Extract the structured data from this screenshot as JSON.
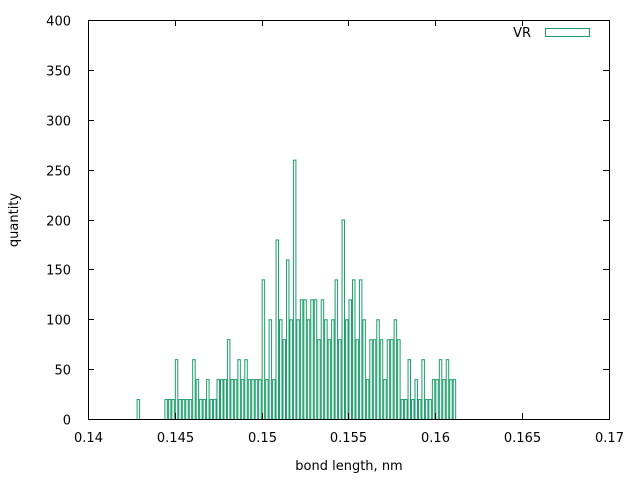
{
  "chart_data": {
    "type": "bar",
    "xlabel": "bond length, nm",
    "ylabel": "quantity",
    "xlim": [
      0.14,
      0.17
    ],
    "ylim": [
      0,
      400
    ],
    "x_ticks": [
      0.14,
      0.145,
      0.15,
      0.155,
      0.16,
      0.165,
      0.17
    ],
    "x_tick_labels": [
      "0.14",
      "0.145",
      "0.15",
      "0.155",
      "0.16",
      "0.165",
      "0.17"
    ],
    "y_ticks": [
      0,
      50,
      100,
      150,
      200,
      250,
      300,
      350,
      400
    ],
    "y_tick_labels": [
      "0",
      "50",
      "100",
      "150",
      "200",
      "250",
      "300",
      "350",
      "400"
    ],
    "grid": false,
    "legend": "top-right",
    "bin_width": 0.0002,
    "series": [
      {
        "name": "VR",
        "color": "#1a9f6a",
        "x": [
          0.1429,
          0.1445,
          0.1447,
          0.1449,
          0.1451,
          0.1453,
          0.1455,
          0.1457,
          0.1459,
          0.1461,
          0.1463,
          0.1465,
          0.1467,
          0.1469,
          0.1471,
          0.1473,
          0.1475,
          0.1477,
          0.1479,
          0.1481,
          0.1483,
          0.1485,
          0.1487,
          0.1489,
          0.1491,
          0.1493,
          0.1495,
          0.1497,
          0.1499,
          0.1501,
          0.1503,
          0.1505,
          0.1507,
          0.1509,
          0.1511,
          0.1513,
          0.1515,
          0.1517,
          0.1519,
          0.1521,
          0.1523,
          0.1525,
          0.1527,
          0.1529,
          0.1531,
          0.1533,
          0.1535,
          0.1537,
          0.1539,
          0.1541,
          0.1543,
          0.1545,
          0.1547,
          0.1549,
          0.1551,
          0.1553,
          0.1555,
          0.1557,
          0.1559,
          0.1561,
          0.1563,
          0.1565,
          0.1567,
          0.1569,
          0.1571,
          0.1573,
          0.1575,
          0.1577,
          0.1579,
          0.1581,
          0.1583,
          0.1585,
          0.1587,
          0.1589,
          0.1591,
          0.1593,
          0.1595,
          0.1597,
          0.1599,
          0.1601,
          0.1603,
          0.1605,
          0.1607,
          0.1609,
          0.1611
        ],
        "values": [
          20,
          20,
          20,
          20,
          60,
          20,
          20,
          20,
          20,
          60,
          40,
          20,
          20,
          40,
          20,
          20,
          40,
          40,
          40,
          80,
          40,
          40,
          60,
          40,
          60,
          40,
          40,
          40,
          40,
          140,
          40,
          100,
          40,
          180,
          100,
          80,
          160,
          100,
          260,
          100,
          120,
          120,
          100,
          120,
          120,
          80,
          120,
          100,
          80,
          100,
          140,
          80,
          200,
          100,
          120,
          140,
          80,
          140,
          100,
          40,
          80,
          80,
          100,
          80,
          40,
          80,
          80,
          100,
          80,
          20,
          20,
          60,
          20,
          40,
          20,
          60,
          20,
          20,
          40,
          40,
          60,
          40,
          60,
          40,
          40
        ]
      }
    ]
  }
}
